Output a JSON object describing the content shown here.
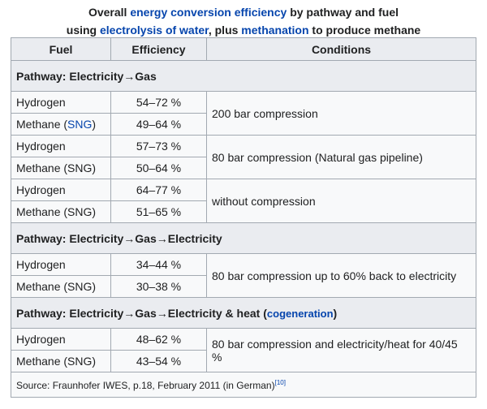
{
  "caption": {
    "line1_prefix": "Overall ",
    "line1_link": "energy conversion efficiency",
    "line1_suffix": " by pathway and fuel",
    "line2_prefix": "using ",
    "line2_link1": "electrolysis of water",
    "line2_mid": ", plus ",
    "line2_link2": "methanation",
    "line2_suffix": " to produce methane"
  },
  "headers": {
    "fuel": "Fuel",
    "efficiency": "Efficiency",
    "conditions": "Conditions"
  },
  "pathways": [
    {
      "title": "Pathway: Electricity→Gas",
      "groups": [
        {
          "condition": "200 bar compression",
          "rows": [
            {
              "fuel": "Hydrogen",
              "efficiency": "54–72 %"
            },
            {
              "fuel": "Methane (SNG)",
              "efficiency": "49–64 %"
            }
          ]
        },
        {
          "condition": "80 bar compression (Natural gas pipeline)",
          "rows": [
            {
              "fuel": "Hydrogen",
              "efficiency": "57–73 %"
            },
            {
              "fuel": "Methane (SNG)",
              "efficiency": "50–64 %"
            }
          ]
        },
        {
          "condition": "without compression",
          "rows": [
            {
              "fuel": "Hydrogen",
              "efficiency": "64–77 %"
            },
            {
              "fuel": "Methane (SNG)",
              "efficiency": "51–65 %"
            }
          ]
        }
      ]
    },
    {
      "title": "Pathway: Electricity→Gas→Electricity",
      "groups": [
        {
          "condition": "80 bar compression up to 60% back to electricity",
          "rows": [
            {
              "fuel": "Hydrogen",
              "efficiency": "34–44 %"
            },
            {
              "fuel": "Methane (SNG)",
              "efficiency": "30–38 %"
            }
          ]
        }
      ]
    },
    {
      "title": "Pathway: Electricity→Gas→Electricity & heat",
      "title_link": "cogeneration",
      "groups": [
        {
          "condition": "80 bar compression and electricity/heat for 40/45 %",
          "rows": [
            {
              "fuel": "Hydrogen",
              "efficiency": "48–62 %"
            },
            {
              "fuel": "Methane (SNG)",
              "efficiency": "43–54 %"
            }
          ]
        }
      ]
    }
  ],
  "sng_link": "SNG",
  "source": {
    "text": "Source: Fraunhofer IWES, p.18, February 2011 (in German)",
    "ref": "[10]"
  }
}
